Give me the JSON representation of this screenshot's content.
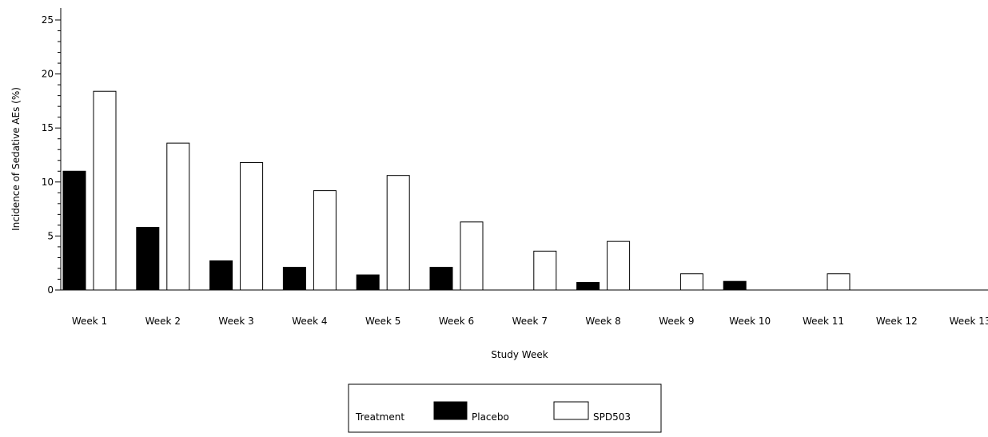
{
  "chart_data": {
    "type": "bar",
    "title": "",
    "xlabel": "Study Week",
    "ylabel": "Incidence of Sedative AEs (%)",
    "ylim": [
      0,
      25
    ],
    "yticks": [
      0,
      5,
      10,
      15,
      20,
      25
    ],
    "categories": [
      "Week 1",
      "Week 2",
      "Week 3",
      "Week 4",
      "Week 5",
      "Week 6",
      "Week 7",
      "Week 8",
      "Week 9",
      "Week 10",
      "Week 11",
      "Week 12",
      "Week 13"
    ],
    "series": [
      {
        "name": "Placebo",
        "fill": "#000000",
        "values": [
          11.0,
          5.8,
          2.7,
          2.1,
          1.4,
          2.1,
          0,
          0.7,
          0,
          0.8,
          0,
          0,
          0
        ]
      },
      {
        "name": "SPD503",
        "fill": "#ffffff",
        "values": [
          18.4,
          13.6,
          11.8,
          9.2,
          10.6,
          6.3,
          3.6,
          4.5,
          1.5,
          0,
          1.5,
          0,
          0
        ]
      }
    ],
    "grid": false,
    "legend": {
      "title": "Treatment",
      "position": "bottom-center"
    }
  }
}
